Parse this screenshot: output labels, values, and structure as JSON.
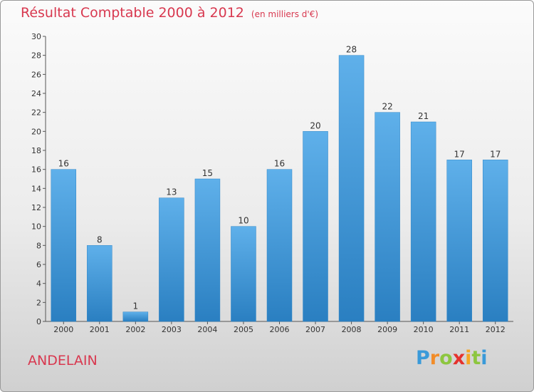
{
  "title": {
    "main": "Résultat Comptable 2000 à 2012",
    "sub": "(en milliers d'€)"
  },
  "commune": "ANDELAIN",
  "logo": {
    "letters": [
      "P",
      "r",
      "o",
      "x",
      "i",
      "t",
      "i"
    ],
    "colors": [
      "#3a9ad9",
      "#f28c28",
      "#8dc63f",
      "#e5322d",
      "#f5a623",
      "#8dc63f",
      "#3a9ad9"
    ]
  },
  "colors": {
    "bar_top": "#5fb0ea",
    "bar_bottom": "#2a7fc1",
    "title": "#d8384f"
  },
  "chart_data": {
    "type": "bar",
    "categories": [
      "2000",
      "2001",
      "2002",
      "2003",
      "2004",
      "2005",
      "2006",
      "2007",
      "2008",
      "2009",
      "2010",
      "2011",
      "2012"
    ],
    "values": [
      16,
      8,
      1,
      13,
      15,
      10,
      16,
      20,
      28,
      22,
      21,
      17,
      17
    ],
    "value_labels": [
      "16",
      "8",
      "1",
      "13",
      "15",
      "10",
      "16",
      "20",
      "28",
      "22",
      "21",
      "17",
      "17"
    ],
    "yticks": [
      "0",
      "2",
      "4",
      "6",
      "8",
      "10",
      "12",
      "14",
      "16",
      "18",
      "20",
      "22",
      "24",
      "26",
      "28",
      "30"
    ],
    "ylim": [
      0,
      30
    ],
    "grid": false,
    "xlabel": "",
    "ylabel": ""
  }
}
